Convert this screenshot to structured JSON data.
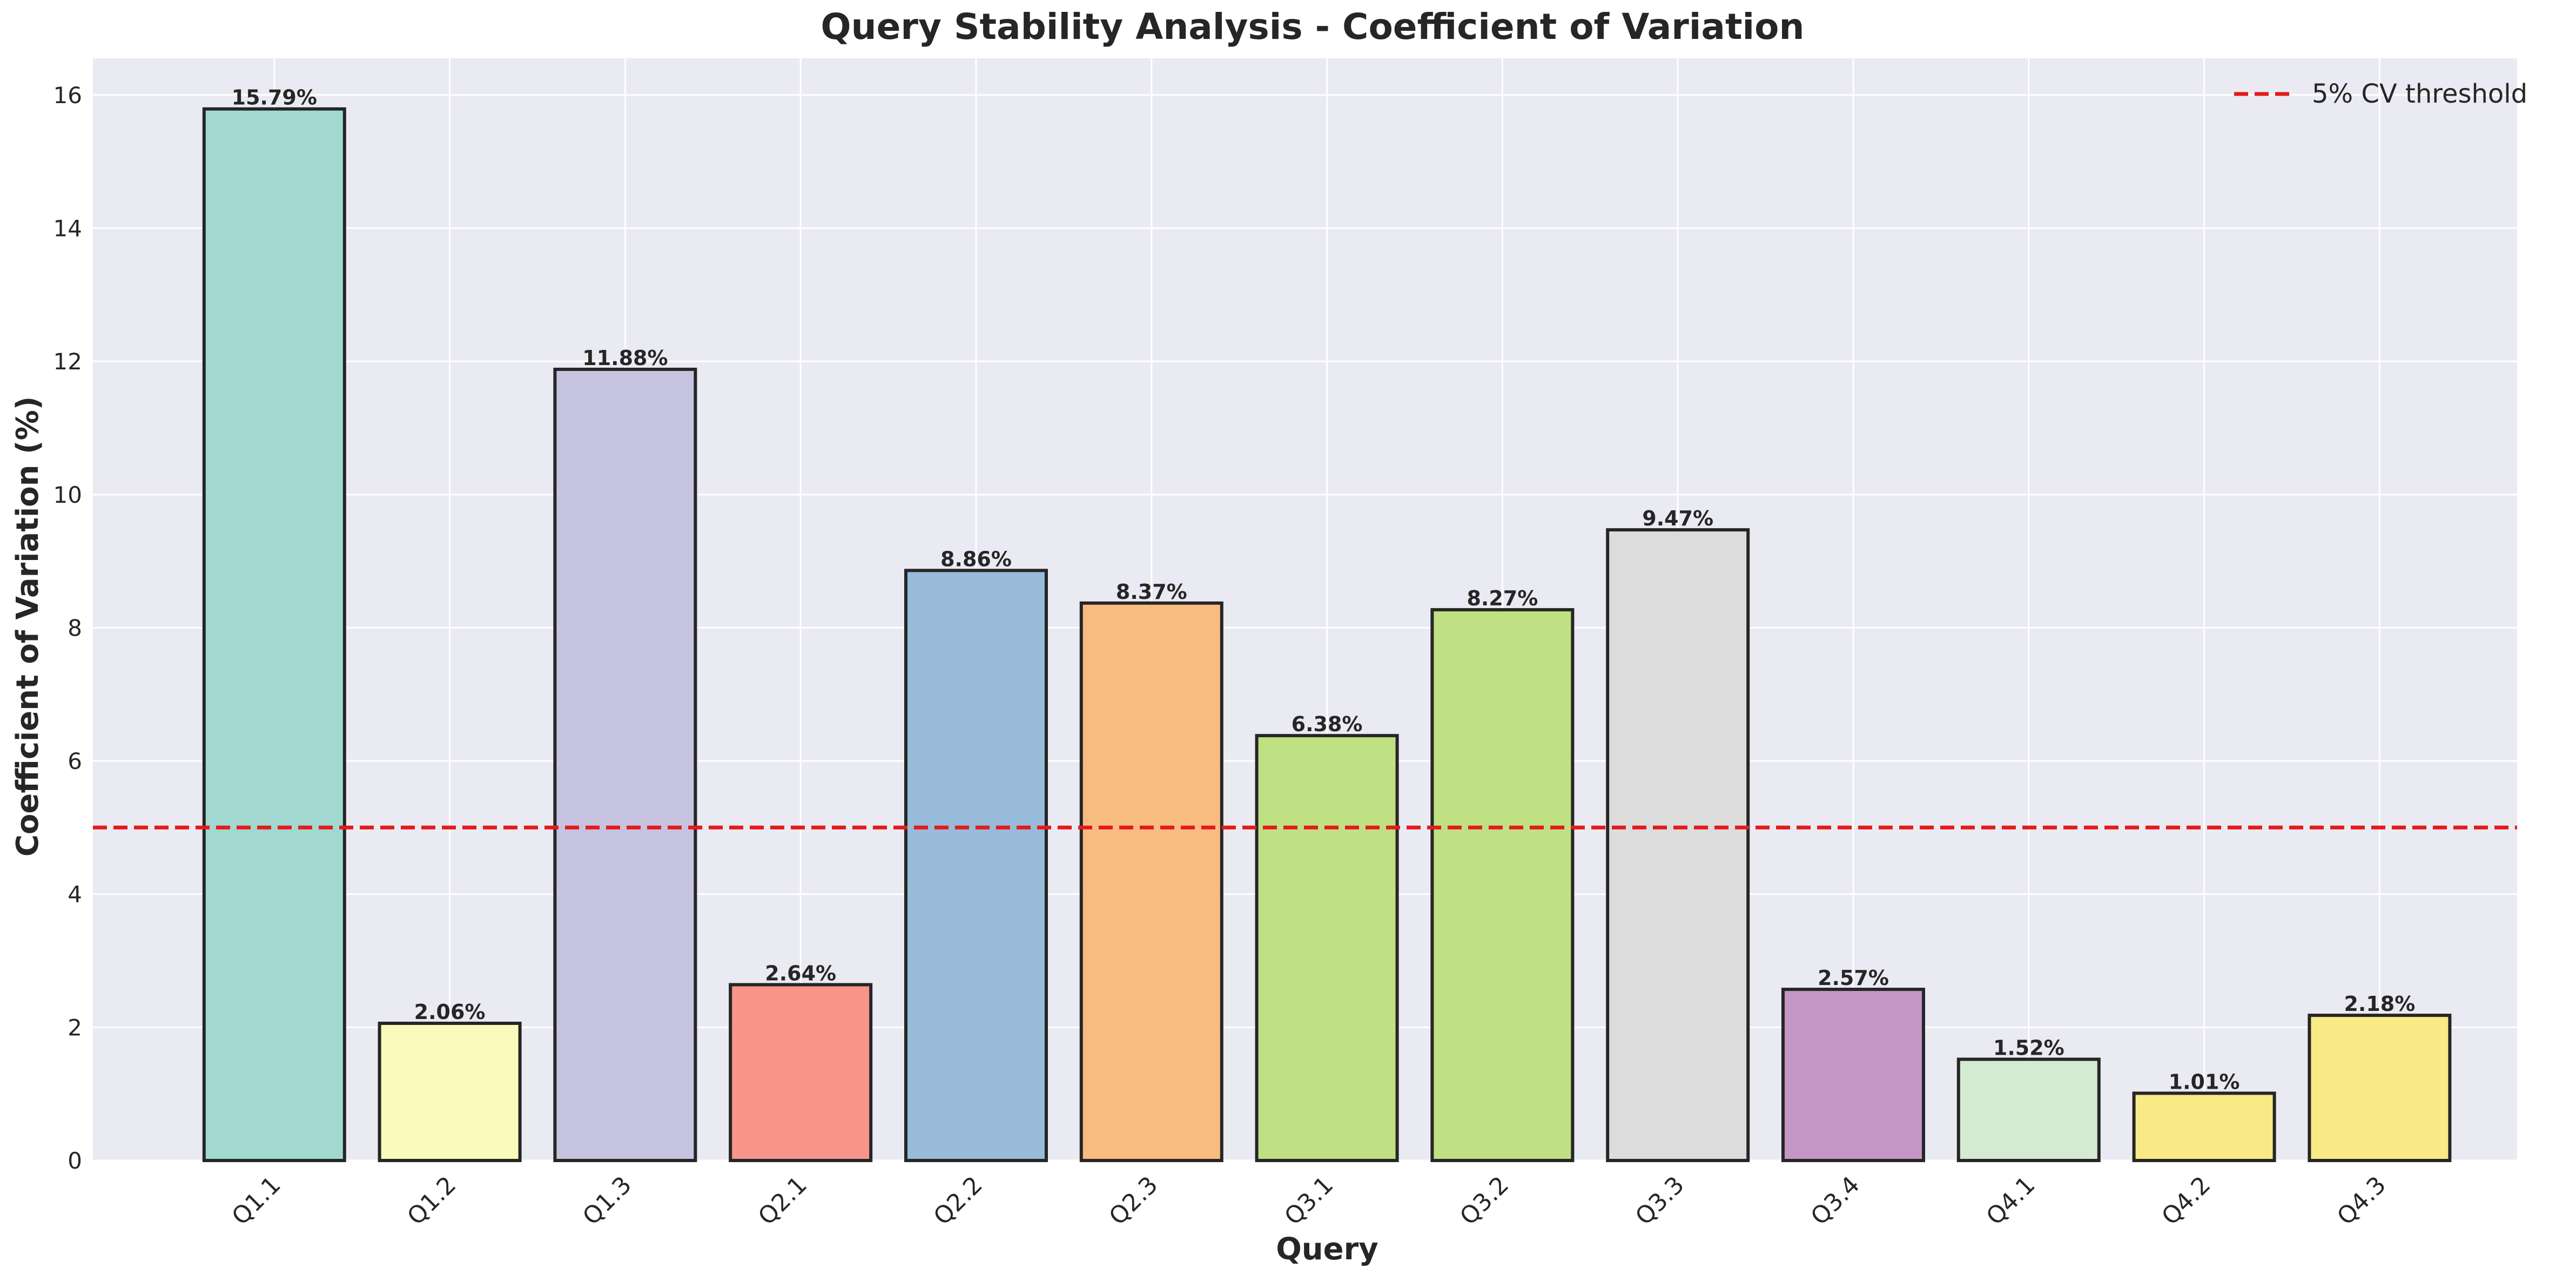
{
  "chart_data": {
    "type": "bar",
    "title": "Query Stability Analysis - Coefficient of Variation",
    "xlabel": "Query",
    "ylabel": "Coefficient of Variation (%)",
    "categories": [
      "Q1.1",
      "Q1.2",
      "Q1.3",
      "Q2.1",
      "Q2.2",
      "Q2.3",
      "Q3.1",
      "Q3.2",
      "Q3.3",
      "Q3.4",
      "Q4.1",
      "Q4.2",
      "Q4.3"
    ],
    "values": [
      15.79,
      2.06,
      11.88,
      2.64,
      8.86,
      8.37,
      6.38,
      8.27,
      9.47,
      2.57,
      1.52,
      1.01,
      2.18
    ],
    "value_labels": [
      "15.79%",
      "2.06%",
      "11.88%",
      "2.64%",
      "8.86%",
      "8.37%",
      "6.38%",
      "8.27%",
      "9.47%",
      "2.57%",
      "1.52%",
      "1.01%",
      "2.18%"
    ],
    "bar_colors": [
      "#a1d8d0",
      "#fafabd",
      "#c6c3e0",
      "#f7958a",
      "#97bbd8",
      "#f8bc81",
      "#bfe083",
      "#bfe083",
      "#dcdcdc",
      "#c596c6",
      "#d3ebd0",
      "#f9ea86",
      "#f9ea86"
    ],
    "ylim": [
      0,
      16.55
    ],
    "yticks": [
      0,
      2,
      4,
      6,
      8,
      10,
      12,
      14,
      16
    ],
    "grid": true,
    "reference_line": {
      "value": 5,
      "label": "5% CV threshold",
      "color": "#e41a1c",
      "style": "dashed"
    },
    "legend_position": "top-right",
    "background_color": "#eaeaf2"
  }
}
